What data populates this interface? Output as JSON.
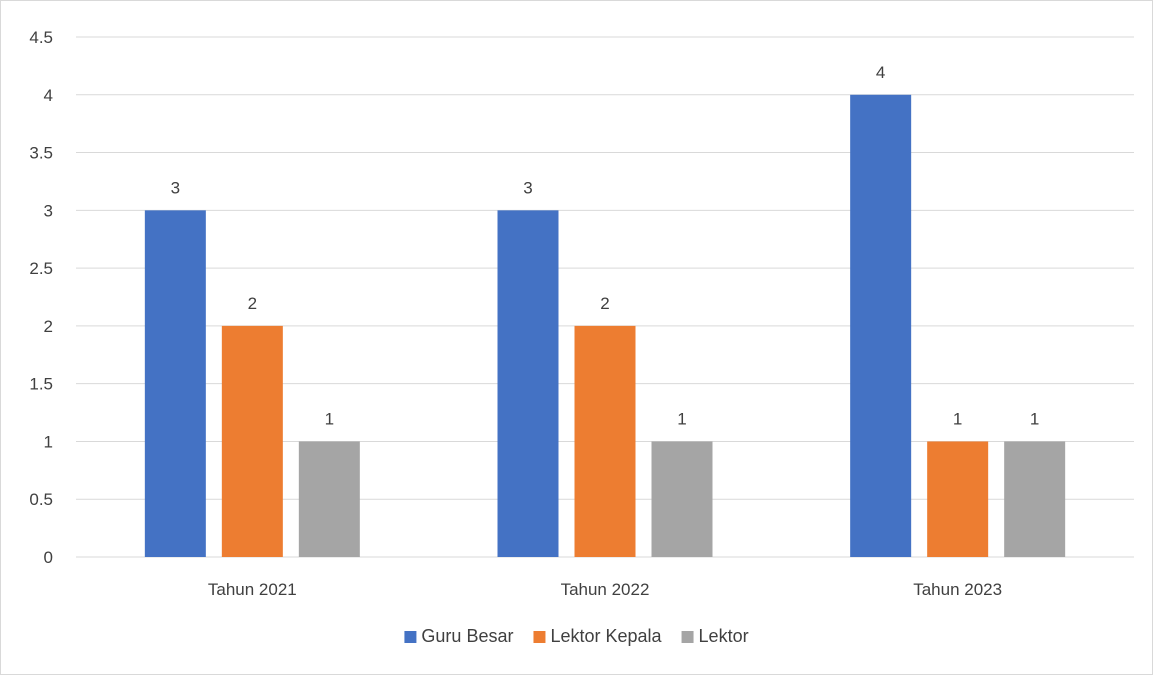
{
  "chart_data": {
    "type": "bar",
    "title": "",
    "xlabel": "",
    "ylabel": "",
    "categories": [
      "Tahun 2021",
      "Tahun 2022",
      "Tahun 2023"
    ],
    "series": [
      {
        "name": "Guru Besar",
        "color": "#4472C4",
        "values": [
          3,
          3,
          4
        ]
      },
      {
        "name": "Lektor Kepala",
        "color": "#ED7D31",
        "values": [
          2,
          2,
          1
        ]
      },
      {
        "name": "Lektor",
        "color": "#A5A5A5",
        "values": [
          1,
          1,
          1
        ]
      }
    ],
    "ylim": [
      0,
      4.5
    ],
    "yticks": [
      "0",
      "0.5",
      "1",
      "1.5",
      "2",
      "2.5",
      "3",
      "3.5",
      "4",
      "4.5"
    ],
    "grid": true,
    "legend": "bottom",
    "data_labels": true
  }
}
